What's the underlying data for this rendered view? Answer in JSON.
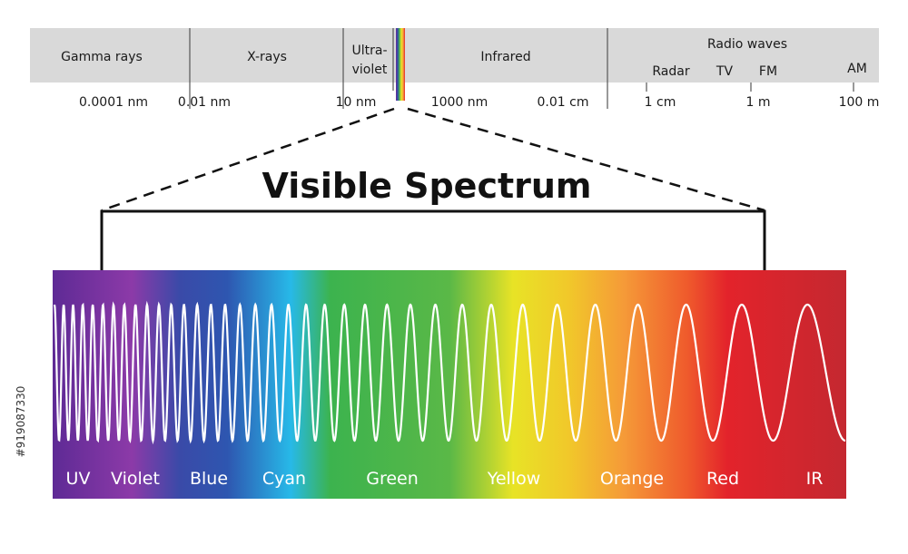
{
  "em_bands": [
    {
      "key": "gamma",
      "label": "Gamma rays"
    },
    {
      "key": "xray",
      "label": "X-rays"
    },
    {
      "key": "uv",
      "label_line1": "Ultra-",
      "label_line2": "violet"
    },
    {
      "key": "infrared",
      "label": "Infrared"
    },
    {
      "key": "radio",
      "label": "Radio waves"
    }
  ],
  "radio_sub_bands": [
    "Radar",
    "TV",
    "FM",
    "AM"
  ],
  "wavelength_ticks": [
    "0.0001 nm",
    "0.01 nm",
    "10 nm",
    "1000 nm",
    "0.01 cm",
    "1 cm",
    "1 m",
    "100 m"
  ],
  "title": "Visible Spectrum",
  "visible_labels": [
    "UV",
    "Violet",
    "Blue",
    "Cyan",
    "Green",
    "Yellow",
    "Orange",
    "Red",
    "IR"
  ],
  "colors": {
    "band_bg": "#d9d9d9",
    "divider": "#555555",
    "uv": "#6a2a9a",
    "violet": "#8a3aa8",
    "blue": "#2e4fa8",
    "cyan": "#27b5e6",
    "green": "#4fb748",
    "yellow": "#efe424",
    "orange": "#f6a23a",
    "red": "#e5262c",
    "ir": "#c72a30"
  },
  "stock_id": "#919087330"
}
